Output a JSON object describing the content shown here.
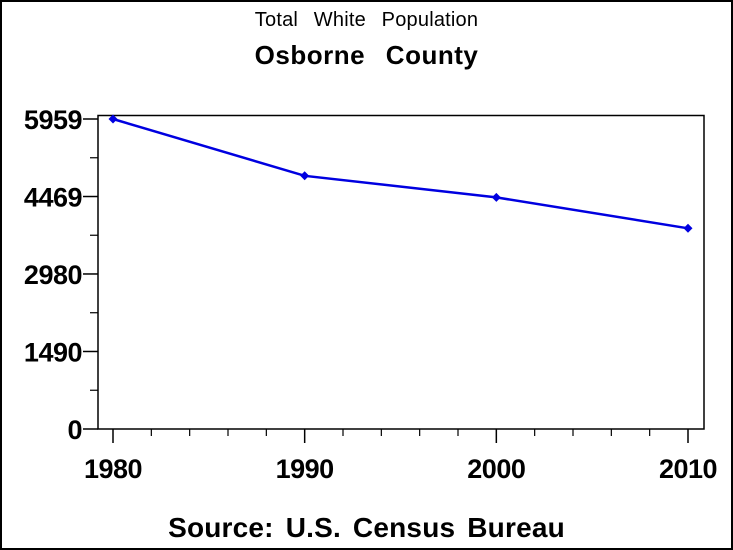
{
  "figure": {
    "title1": "Total White Population",
    "title2": "Osborne County",
    "source": "Source: U.S. Census Bureau"
  },
  "chart_data": {
    "type": "line",
    "title": "Total White Population",
    "subtitle": "Osborne County",
    "footnote": "Source: U.S. Census Bureau",
    "x": [
      1980,
      1990,
      2000,
      2010
    ],
    "series": [
      {
        "name": "Total White Population",
        "values": [
          5959,
          4867,
          4452,
          3858
        ]
      }
    ],
    "xlabel": "",
    "ylabel": "",
    "ylim": [
      0,
      5959
    ],
    "yticks": [
      0,
      1490,
      2980,
      4469,
      5959
    ],
    "ytick_labels": [
      "0",
      "1490",
      "2980",
      "4469",
      "5959"
    ],
    "xticks": [
      1980,
      1990,
      2000,
      2010
    ],
    "xtick_labels": [
      "1980",
      "1990",
      "2000",
      "2010"
    ],
    "x_minor_step": 2,
    "y_minor_divisions": 2,
    "grid": false,
    "legend": "none",
    "line_color": "#0000e0",
    "marker": "diamond",
    "marker_color": "#0000e0",
    "axis_color": "#000000",
    "background_color": "#ffffff"
  }
}
